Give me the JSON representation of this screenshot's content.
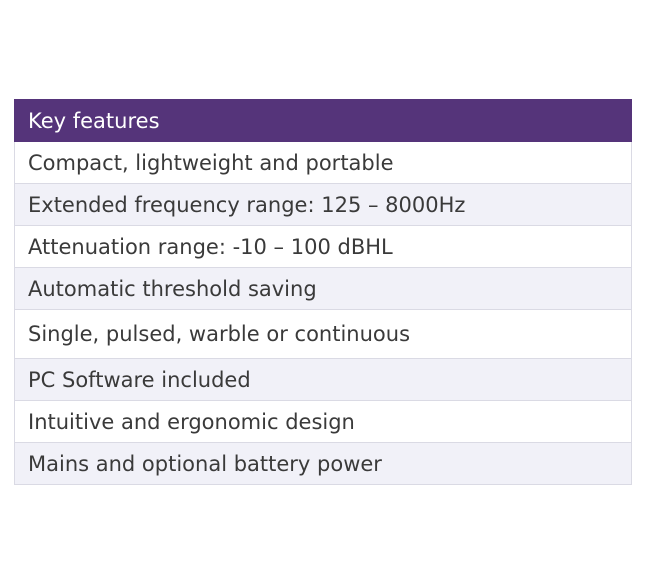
{
  "table": {
    "header": "Key features",
    "rows": [
      "Compact, lightweight and portable",
      "Extended frequency range: 125 – 8000Hz",
      "Attenuation range: -10 – 100 dBHL",
      "Automatic threshold saving",
      "Single, pulsed, warble or continuous",
      "PC Software included",
      "Intuitive and ergonomic design",
      "Mains and optional battery power"
    ]
  }
}
